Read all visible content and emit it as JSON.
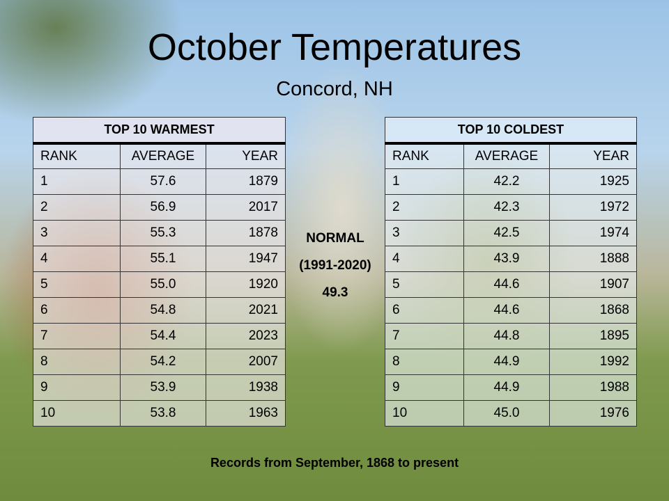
{
  "title": "October Temperatures",
  "subtitle": "Concord, NH",
  "warmest": {
    "heading": "TOP 10 WARMEST",
    "columns": [
      "RANK",
      "AVERAGE",
      "YEAR"
    ],
    "rows": [
      [
        "1",
        "57.6",
        "1879"
      ],
      [
        "2",
        "56.9",
        "2017"
      ],
      [
        "3",
        "55.3",
        "1878"
      ],
      [
        "4",
        "55.1",
        "1947"
      ],
      [
        "5",
        "55.0",
        "1920"
      ],
      [
        "6",
        "54.8",
        "2021"
      ],
      [
        "7",
        "54.4",
        "2023"
      ],
      [
        "8",
        "54.2",
        "2007"
      ],
      [
        "9",
        "53.9",
        "1938"
      ],
      [
        "10",
        "53.8",
        "1963"
      ]
    ]
  },
  "coldest": {
    "heading": "TOP 10 COLDEST",
    "columns": [
      "RANK",
      "AVERAGE",
      "YEAR"
    ],
    "rows": [
      [
        "1",
        "42.2",
        "1925"
      ],
      [
        "2",
        "42.3",
        "1972"
      ],
      [
        "3",
        "42.5",
        "1974"
      ],
      [
        "4",
        "43.9",
        "1888"
      ],
      [
        "5",
        "44.6",
        "1907"
      ],
      [
        "6",
        "44.6",
        "1868"
      ],
      [
        "7",
        "44.8",
        "1895"
      ],
      [
        "8",
        "44.9",
        "1992"
      ],
      [
        "9",
        "44.9",
        "1988"
      ],
      [
        "10",
        "45.0",
        "1976"
      ]
    ]
  },
  "normal": {
    "label": "NORMAL",
    "period": "(1991-2020)",
    "value": "49.3"
  },
  "footer": "Records from September, 1868 to present"
}
